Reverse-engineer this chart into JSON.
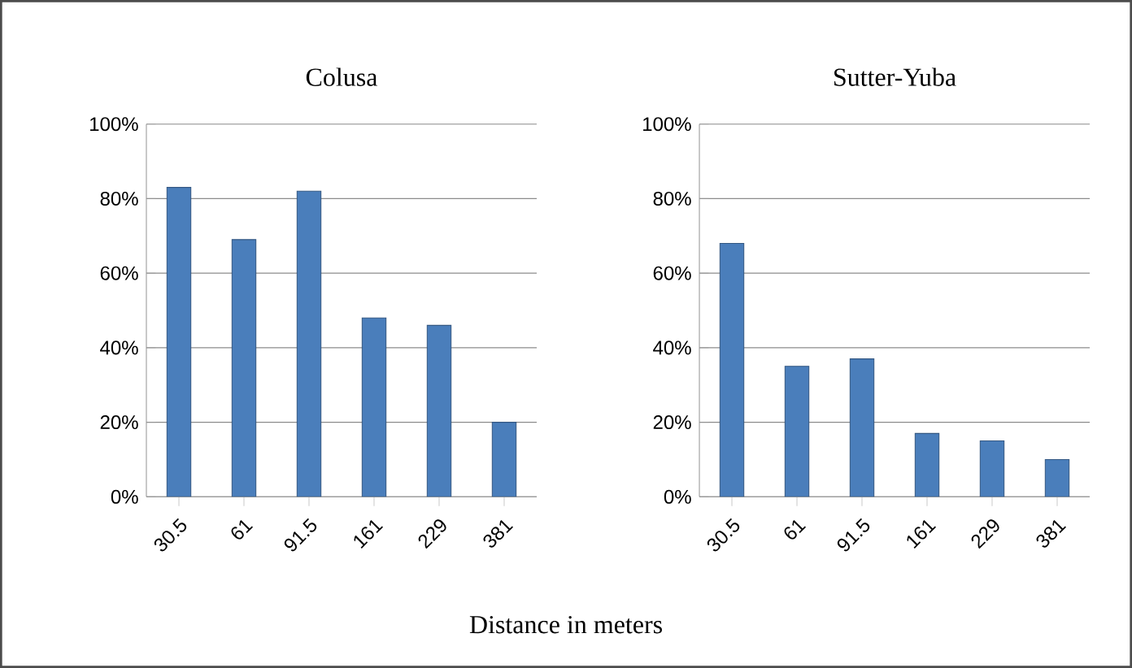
{
  "chart_data": [
    {
      "type": "bar",
      "title": "Colusa",
      "xlabel": "Distance in meters",
      "categories": [
        "30.5",
        "61",
        "91.5",
        "161",
        "229",
        "381"
      ],
      "values": [
        83,
        69,
        82,
        48,
        46,
        20
      ],
      "color": "#4a7ebb",
      "ylim": [
        0,
        100
      ],
      "yticks": [
        {
          "value": 0,
          "label": "0%"
        },
        {
          "value": 20,
          "label": "20%"
        },
        {
          "value": 40,
          "label": "40%"
        },
        {
          "value": 60,
          "label": "60%"
        },
        {
          "value": 80,
          "label": "80%"
        },
        {
          "value": 100,
          "label": "100%"
        }
      ],
      "grid": "y"
    },
    {
      "type": "bar",
      "title": "Sutter-Yuba",
      "categories": [
        "30.5",
        "61",
        "91.5",
        "161",
        "229",
        "381"
      ],
      "values": [
        68,
        35,
        37,
        17,
        15,
        10
      ],
      "color": "#4a7ebb",
      "ylim": [
        0,
        100
      ],
      "yticks": [
        {
          "value": 0,
          "label": "0%"
        },
        {
          "value": 20,
          "label": "20%"
        },
        {
          "value": 40,
          "label": "40%"
        },
        {
          "value": 60,
          "label": "60%"
        },
        {
          "value": 80,
          "label": "80%"
        },
        {
          "value": 100,
          "label": "100%"
        }
      ],
      "grid": "y"
    }
  ]
}
